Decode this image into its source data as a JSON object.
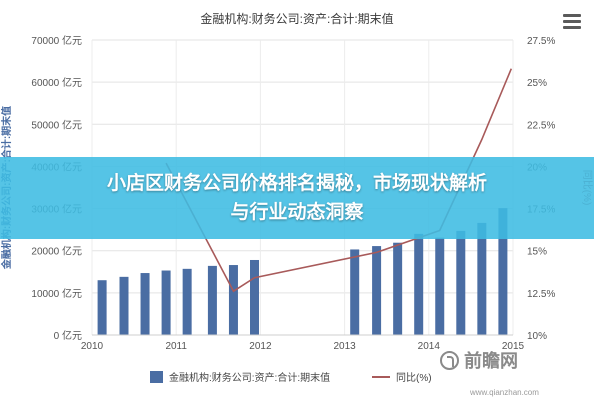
{
  "chart_data": {
    "type": "bar",
    "title": "金融机构:财务公司:资产:合计:期末值",
    "ylabel_left": "金融机构:财务公司:资产:合计:期末值",
    "ylabel_right": "同比(%)",
    "x_ticks": [
      "2010",
      "2011",
      "2012",
      "2013",
      "2014",
      "2015"
    ],
    "y_left_ticks": [
      "0 亿元",
      "10000 亿元",
      "20000 亿元",
      "30000 亿元",
      "40000 亿元",
      "50000 亿元",
      "60000 亿元",
      "70000 亿元"
    ],
    "y_right_ticks": [
      "10%",
      "12.5%",
      "15%",
      "17.5%",
      "20%",
      "22.5%",
      "25%",
      "27.5%"
    ],
    "ylim_left": [
      0,
      70000
    ],
    "ylim_right": [
      10,
      27.5
    ],
    "series": [
      {
        "name": "金融机构:财务公司:资产:合计:期末值",
        "kind": "bar",
        "color": "#4a6da3",
        "points": [
          {
            "x": 2010.12,
            "y": 13000
          },
          {
            "x": 2010.38,
            "y": 13800
          },
          {
            "x": 2010.63,
            "y": 14700
          },
          {
            "x": 2010.88,
            "y": 15300
          },
          {
            "x": 2011.13,
            "y": 15700
          },
          {
            "x": 2011.43,
            "y": 16400
          },
          {
            "x": 2011.68,
            "y": 16600
          },
          {
            "x": 2011.93,
            "y": 17800
          },
          {
            "x": 2013.12,
            "y": 20300
          },
          {
            "x": 2013.38,
            "y": 21100
          },
          {
            "x": 2013.63,
            "y": 21900
          },
          {
            "x": 2013.88,
            "y": 24000
          },
          {
            "x": 2014.13,
            "y": 23100
          },
          {
            "x": 2014.38,
            "y": 24700
          },
          {
            "x": 2014.63,
            "y": 26600
          },
          {
            "x": 2014.88,
            "y": 30100
          }
        ]
      },
      {
        "name": "同比(%)",
        "kind": "line",
        "color": "#a85a5a",
        "points": [
          {
            "x": 2010.88,
            "y": 20.2
          },
          {
            "x": 2011.68,
            "y": 12.6
          },
          {
            "x": 2011.93,
            "y": 13.4
          },
          {
            "x": 2013.38,
            "y": 14.9
          },
          {
            "x": 2014.13,
            "y": 16.2
          },
          {
            "x": 2014.63,
            "y": 21.6
          },
          {
            "x": 2014.98,
            "y": 25.8
          }
        ]
      }
    ],
    "legend_position": "bottom",
    "legend": [
      "金融机构:财务公司:资产:合计:期末值",
      "同比(%)"
    ]
  },
  "banner": {
    "line1": "小店区财务公司价格排名揭秘，市场现状解析",
    "line2": "与行业动态洞察"
  },
  "watermark": {
    "brand": "前瞻网",
    "url": "www.qianzhan.com"
  }
}
